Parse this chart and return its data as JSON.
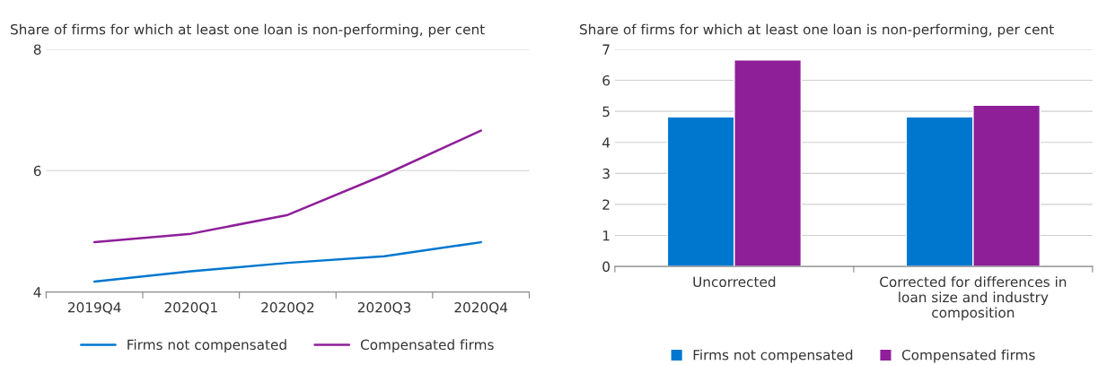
{
  "chart_data": [
    {
      "type": "line",
      "title": "Share of firms for which at least one loan is non-performing, per cent",
      "categories": [
        "2019Q4",
        "2020Q1",
        "2020Q2",
        "2020Q3",
        "2020Q4"
      ],
      "series": [
        {
          "name": "Firms not compensated",
          "color": "#0077cf",
          "values": [
            4.17,
            4.34,
            4.48,
            4.59,
            4.82
          ]
        },
        {
          "name": "Compensated firms",
          "color": "#8e1f99",
          "values": [
            4.82,
            4.96,
            5.27,
            5.93,
            6.66
          ]
        }
      ],
      "ylim": [
        4,
        8
      ],
      "yticks": [
        4,
        6,
        8
      ],
      "grid": "y",
      "legend": "bottom"
    },
    {
      "type": "bar",
      "title": "Share of firms for which at least one loan is non-performing, per cent",
      "categories": [
        "Uncorrected",
        "Corrected for differences in\nloan size and industry\ncomposition"
      ],
      "series": [
        {
          "name": "Firms not compensated",
          "color": "#0077cf",
          "values": [
            4.82,
            4.82
          ]
        },
        {
          "name": "Compensated firms",
          "color": "#8e1f99",
          "values": [
            6.66,
            5.2
          ]
        }
      ],
      "ylim": [
        0,
        7
      ],
      "yticks": [
        0,
        1,
        2,
        3,
        4,
        5,
        6,
        7
      ],
      "grid": "y",
      "legend": "bottom"
    }
  ]
}
